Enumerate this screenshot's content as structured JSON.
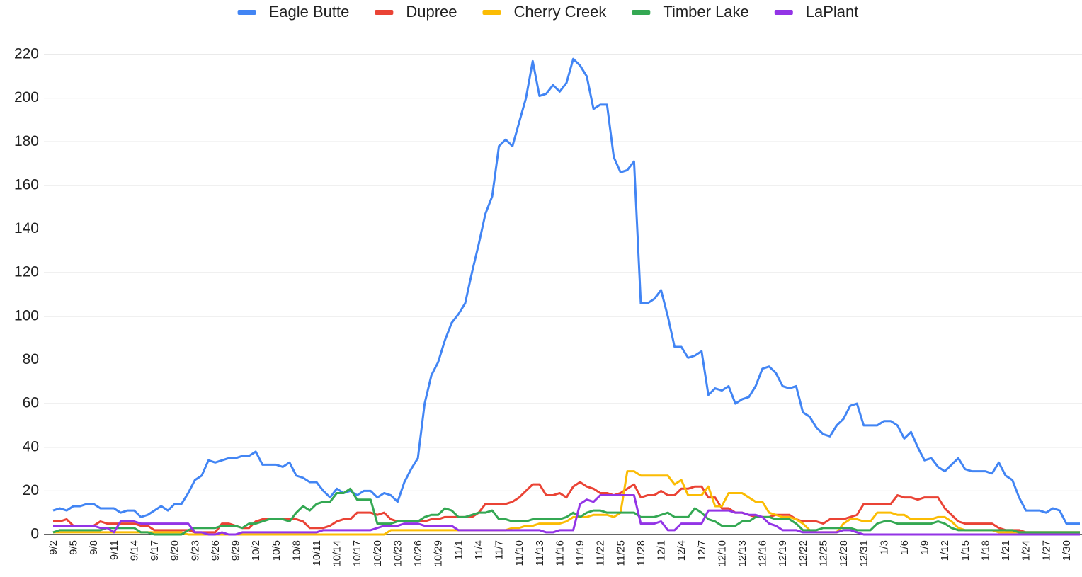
{
  "chart_data": {
    "type": "line",
    "categories": [
      "9/2",
      null,
      null,
      "9/5",
      null,
      null,
      "9/8",
      null,
      null,
      "9/11",
      null,
      null,
      "9/14",
      null,
      null,
      "9/17",
      null,
      null,
      "9/20",
      null,
      null,
      "9/23",
      null,
      null,
      "9/26",
      null,
      null,
      "9/29",
      null,
      null,
      "10/2",
      null,
      null,
      "10/5",
      null,
      null,
      "10/8",
      null,
      null,
      "10/11",
      null,
      null,
      "10/14",
      null,
      null,
      "10/17",
      null,
      null,
      "10/20",
      null,
      null,
      "10/23",
      null,
      null,
      "10/26",
      null,
      null,
      "10/29",
      null,
      null,
      "11/1",
      null,
      null,
      "11/4",
      null,
      null,
      "11/7",
      null,
      null,
      "11/10",
      null,
      null,
      "11/13",
      null,
      null,
      "11/16",
      null,
      null,
      "11/19",
      null,
      null,
      "11/22",
      null,
      null,
      "11/25",
      null,
      null,
      "11/28",
      null,
      null,
      "12/1",
      null,
      null,
      "12/4",
      null,
      null,
      "12/7",
      null,
      null,
      "12/10",
      null,
      null,
      "12/13",
      null,
      null,
      "12/16",
      null,
      null,
      "12/19",
      null,
      null,
      "12/22",
      null,
      null,
      "12/25",
      null,
      null,
      "12/28",
      null,
      null,
      "12/31",
      null,
      null,
      "1/3",
      null,
      null,
      "1/6",
      null,
      null,
      "1/9",
      null,
      null,
      "1/12",
      null,
      null,
      "1/15",
      null,
      null,
      "1/18",
      null,
      null,
      "1/21",
      null,
      null,
      "1/24",
      null,
      null,
      "1/27",
      null,
      null,
      "1/30",
      null,
      null
    ],
    "series": [
      {
        "name": "Eagle Butte",
        "color": "#4285f4",
        "values": [
          11,
          12,
          11,
          13,
          13,
          14,
          14,
          12,
          12,
          12,
          10,
          11,
          11,
          8,
          9,
          11,
          13,
          11,
          14,
          14,
          19,
          25,
          27,
          34,
          33,
          34,
          35,
          35,
          36,
          36,
          38,
          32,
          32,
          32,
          31,
          33,
          27,
          26,
          24,
          24,
          20,
          17,
          21,
          19,
          20,
          18,
          20,
          20,
          17,
          19,
          18,
          15,
          24,
          30,
          35,
          60,
          73,
          79,
          89,
          97,
          101,
          106,
          120,
          133,
          147,
          155,
          178,
          181,
          178,
          189,
          200,
          217,
          201,
          202,
          206,
          203,
          207,
          218,
          215,
          210,
          195,
          197,
          197,
          173,
          166,
          167,
          171,
          106,
          106,
          108,
          112,
          100,
          86,
          86,
          81,
          82,
          84,
          64,
          67,
          66,
          68,
          60,
          62,
          63,
          68,
          76,
          77,
          74,
          68,
          67,
          68,
          56,
          54,
          49,
          46,
          45,
          50,
          53,
          59,
          60,
          50,
          50,
          50,
          52,
          52,
          50,
          44,
          47,
          40,
          34,
          35,
          31,
          29,
          32,
          35,
          30,
          29,
          29,
          29,
          28,
          33,
          27,
          25,
          17,
          11,
          11,
          11,
          10,
          12,
          11,
          5,
          5,
          5
        ]
      },
      {
        "name": "Dupree",
        "color": "#ea4335",
        "values": [
          6,
          6,
          7,
          4,
          4,
          4,
          4,
          6,
          5,
          5,
          5,
          5,
          5,
          4,
          4,
          2,
          2,
          2,
          2,
          2,
          2,
          1,
          1,
          1,
          1,
          5,
          5,
          4,
          3,
          3,
          6,
          7,
          7,
          7,
          7,
          7,
          7,
          6,
          3,
          3,
          3,
          4,
          6,
          7,
          7,
          10,
          10,
          10,
          9,
          10,
          7,
          6,
          6,
          6,
          6,
          6,
          7,
          7,
          8,
          8,
          8,
          8,
          8,
          10,
          14,
          14,
          14,
          14,
          15,
          17,
          20,
          23,
          23,
          18,
          18,
          19,
          17,
          22,
          24,
          22,
          21,
          19,
          19,
          18,
          19,
          21,
          23,
          17,
          18,
          18,
          20,
          18,
          18,
          21,
          21,
          22,
          22,
          17,
          17,
          12,
          12,
          10,
          10,
          9,
          8,
          8,
          8,
          9,
          9,
          9,
          7,
          6,
          6,
          6,
          5,
          7,
          7,
          7,
          8,
          9,
          14,
          14,
          14,
          14,
          14,
          18,
          17,
          17,
          16,
          17,
          17,
          17,
          12,
          9,
          6,
          5,
          5,
          5,
          5,
          5,
          3,
          2,
          2,
          2,
          1,
          1,
          1,
          1,
          1,
          1,
          1,
          1,
          1
        ]
      },
      {
        "name": "Cherry Creek",
        "color": "#fbbc04",
        "values": [
          1,
          1,
          1,
          1,
          1,
          1,
          1,
          1,
          1,
          1,
          1,
          1,
          1,
          1,
          1,
          1,
          1,
          1,
          1,
          1,
          0,
          0,
          0,
          0,
          0,
          0,
          0,
          0,
          0,
          0,
          0,
          0,
          0,
          0,
          0,
          0,
          0,
          0,
          0,
          0,
          0,
          0,
          0,
          0,
          0,
          0,
          0,
          0,
          0,
          0,
          2,
          2,
          2,
          2,
          2,
          2,
          2,
          2,
          2,
          2,
          2,
          2,
          2,
          2,
          2,
          2,
          2,
          2,
          3,
          3,
          4,
          4,
          5,
          5,
          5,
          5,
          6,
          8,
          8,
          8,
          9,
          9,
          9,
          8,
          10,
          29,
          29,
          27,
          27,
          27,
          27,
          27,
          23,
          25,
          18,
          18,
          18,
          22,
          13,
          13,
          19,
          19,
          19,
          17,
          15,
          15,
          10,
          9,
          8,
          8,
          7,
          5,
          2,
          1,
          1,
          1,
          1,
          5,
          7,
          7,
          6,
          6,
          10,
          10,
          10,
          9,
          9,
          7,
          7,
          7,
          7,
          8,
          8,
          6,
          3,
          2,
          2,
          2,
          2,
          2,
          1,
          1,
          1,
          1,
          1,
          1,
          1,
          1,
          1,
          1,
          1,
          1,
          1
        ]
      },
      {
        "name": "Timber Lake",
        "color": "#34a853",
        "values": [
          1,
          2,
          2,
          2,
          2,
          2,
          2,
          2,
          3,
          3,
          3,
          3,
          3,
          1,
          1,
          0,
          0,
          0,
          0,
          0,
          2,
          3,
          3,
          3,
          3,
          4,
          4,
          4,
          3,
          5,
          5,
          6,
          7,
          7,
          7,
          6,
          10,
          13,
          11,
          14,
          15,
          15,
          19,
          19,
          21,
          16,
          16,
          16,
          5,
          5,
          5,
          6,
          6,
          6,
          6,
          8,
          9,
          9,
          12,
          11,
          8,
          8,
          9,
          10,
          10,
          11,
          7,
          7,
          6,
          6,
          6,
          7,
          7,
          7,
          7,
          7,
          8,
          10,
          8,
          10,
          11,
          11,
          10,
          10,
          10,
          10,
          10,
          8,
          8,
          8,
          9,
          10,
          8,
          8,
          8,
          12,
          10,
          7,
          6,
          4,
          4,
          4,
          6,
          6,
          8,
          8,
          8,
          7,
          7,
          7,
          5,
          2,
          2,
          2,
          3,
          3,
          3,
          3,
          3,
          2,
          2,
          2,
          5,
          6,
          6,
          5,
          5,
          5,
          5,
          5,
          5,
          6,
          5,
          3,
          2,
          2,
          2,
          2,
          2,
          2,
          2,
          2,
          2,
          1,
          1,
          1,
          1,
          1,
          1,
          1,
          1,
          1,
          1
        ]
      },
      {
        "name": "LaPlant",
        "color": "#9334e6",
        "values": [
          4,
          4,
          4,
          4,
          4,
          4,
          4,
          3,
          3,
          1,
          6,
          6,
          6,
          5,
          5,
          5,
          5,
          5,
          5,
          5,
          5,
          1,
          1,
          0,
          0,
          1,
          0,
          0,
          1,
          1,
          1,
          1,
          1,
          1,
          1,
          1,
          1,
          1,
          1,
          1,
          2,
          2,
          2,
          2,
          2,
          2,
          2,
          2,
          3,
          4,
          4,
          4,
          5,
          5,
          5,
          4,
          4,
          4,
          4,
          4,
          2,
          2,
          2,
          2,
          2,
          2,
          2,
          2,
          2,
          2,
          2,
          2,
          2,
          1,
          1,
          2,
          2,
          2,
          14,
          16,
          15,
          18,
          18,
          18,
          18,
          18,
          18,
          5,
          5,
          5,
          6,
          2,
          2,
          5,
          5,
          5,
          5,
          11,
          11,
          11,
          11,
          10,
          10,
          9,
          9,
          8,
          5,
          4,
          2,
          2,
          2,
          1,
          1,
          1,
          1,
          1,
          1,
          2,
          2,
          1,
          0,
          0,
          0,
          0,
          0,
          0,
          0,
          0,
          0,
          0,
          0,
          0,
          0,
          0,
          0,
          0,
          0,
          0,
          0,
          0,
          0,
          0,
          0,
          0,
          0,
          0,
          0,
          0,
          0,
          0,
          0,
          0,
          0
        ]
      }
    ],
    "ylim": [
      0,
      220
    ],
    "yticks": [
      0,
      20,
      40,
      60,
      80,
      100,
      120,
      140,
      160,
      180,
      200,
      220
    ],
    "grid": true,
    "legend": "top"
  }
}
